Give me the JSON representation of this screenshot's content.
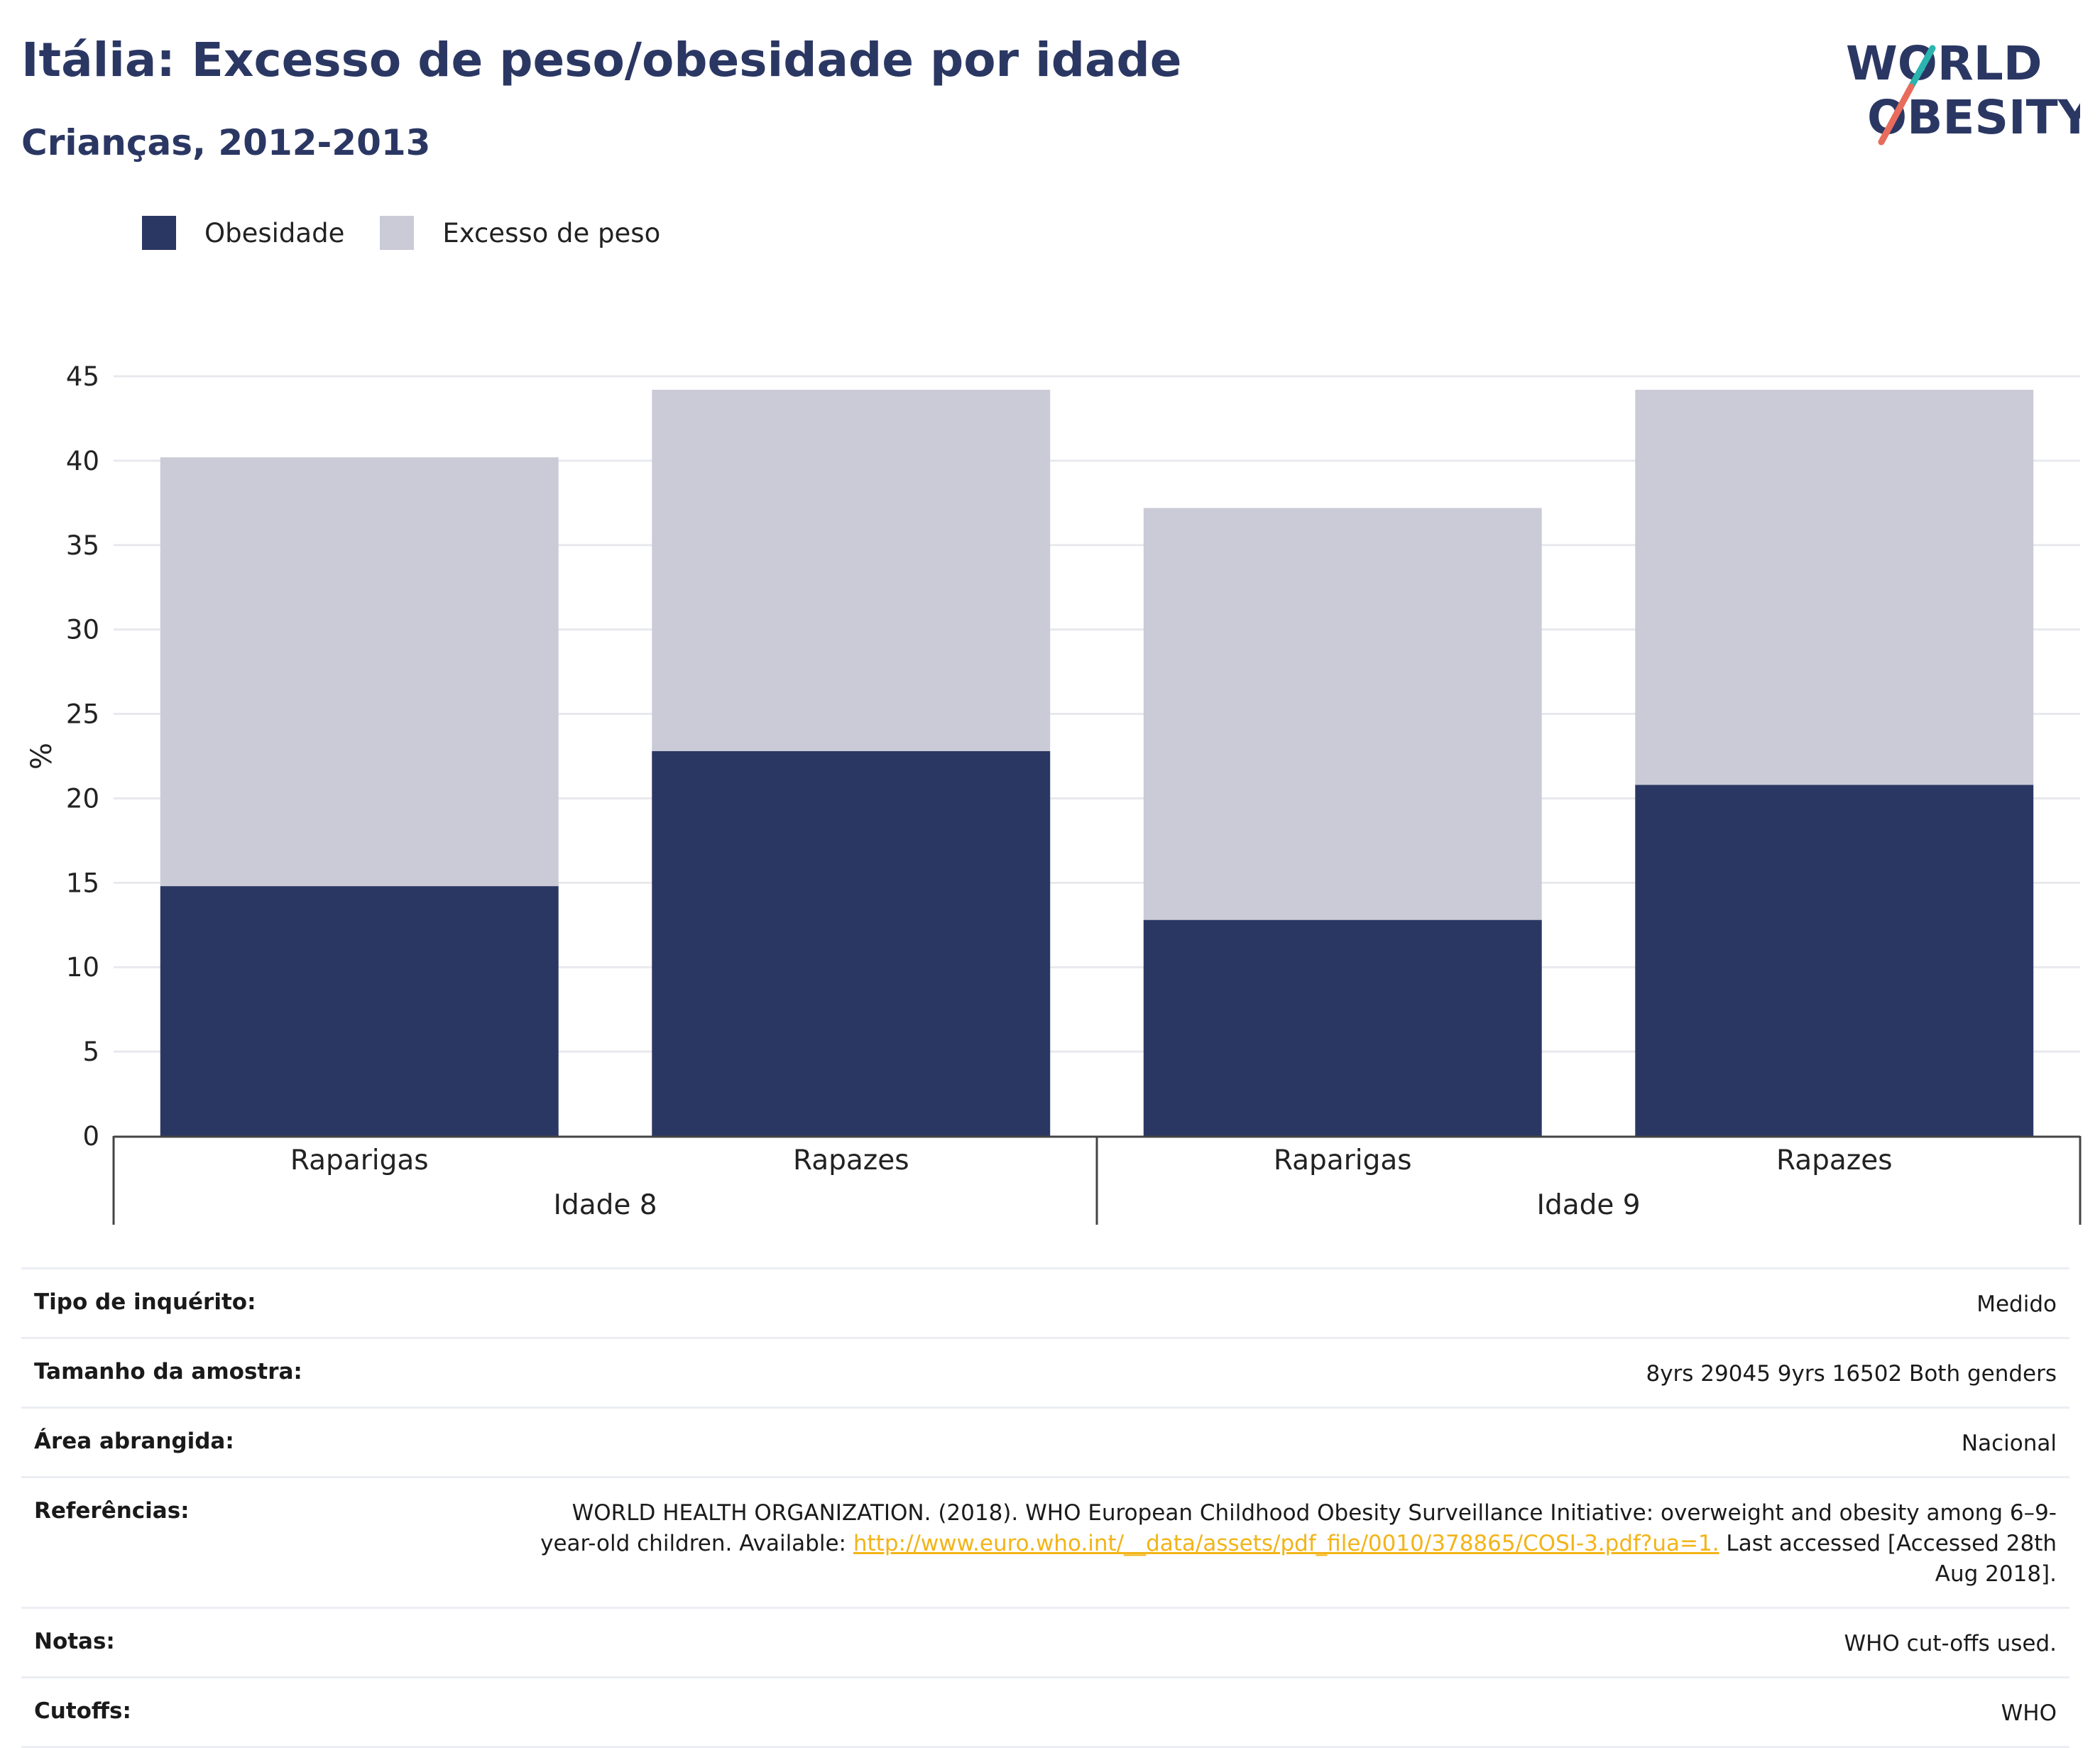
{
  "header": {
    "title": "Itália: Excesso de peso/obesidade por idade",
    "subtitle": "Crianças, 2012-2013",
    "logo_line1": "WORLD",
    "logo_line2": "OBESITY"
  },
  "legend": {
    "items": [
      {
        "label": "Obesidade",
        "color": "#2b3763"
      },
      {
        "label": "Excesso de peso",
        "color": "#cacbd7"
      }
    ]
  },
  "chart_data": {
    "type": "bar",
    "stacked": true,
    "ylabel": "%",
    "ylim": [
      0,
      45
    ],
    "yticks": [
      0,
      5,
      10,
      15,
      20,
      25,
      30,
      35,
      40,
      45
    ],
    "categories": [
      "Raparigas",
      "Rapazes",
      "Raparigas",
      "Rapazes"
    ],
    "groups": [
      {
        "label": "Idade 8",
        "span": [
          0,
          1
        ]
      },
      {
        "label": "Idade 9",
        "span": [
          2,
          3
        ]
      }
    ],
    "series": [
      {
        "name": "Obesidade",
        "color": "#2b3763",
        "values": [
          14.8,
          22.8,
          12.8,
          20.8
        ]
      },
      {
        "name": "Excesso de peso",
        "color": "#cacbd7",
        "values": [
          25.4,
          21.4,
          24.4,
          23.4
        ]
      }
    ],
    "grid": true,
    "legend_position": "top-left"
  },
  "info": {
    "rows": [
      {
        "key": "Tipo de inquérito:",
        "value": "Medido"
      },
      {
        "key": "Tamanho da amostra:",
        "value": "8yrs 29045 9yrs 16502 Both genders"
      },
      {
        "key": "Área abrangida:",
        "value": "Nacional"
      },
      {
        "key": "Notas:",
        "value": "WHO cut-offs used."
      },
      {
        "key": "Cutoffs:",
        "value": "WHO"
      }
    ],
    "references": {
      "key": "Referências:",
      "text_before": "WORLD HEALTH ORGANIZATION. (2018). WHO European Childhood Obesity Surveillance Initiative: overweight and obesity among 6–9-year-old children. Available: ",
      "link": "http://www.euro.who.int/__data/assets/pdf_file/0010/378865/COSI-3.pdf?ua=1.",
      "text_after": " Last accessed [Accessed 28th Aug 2018]."
    }
  }
}
